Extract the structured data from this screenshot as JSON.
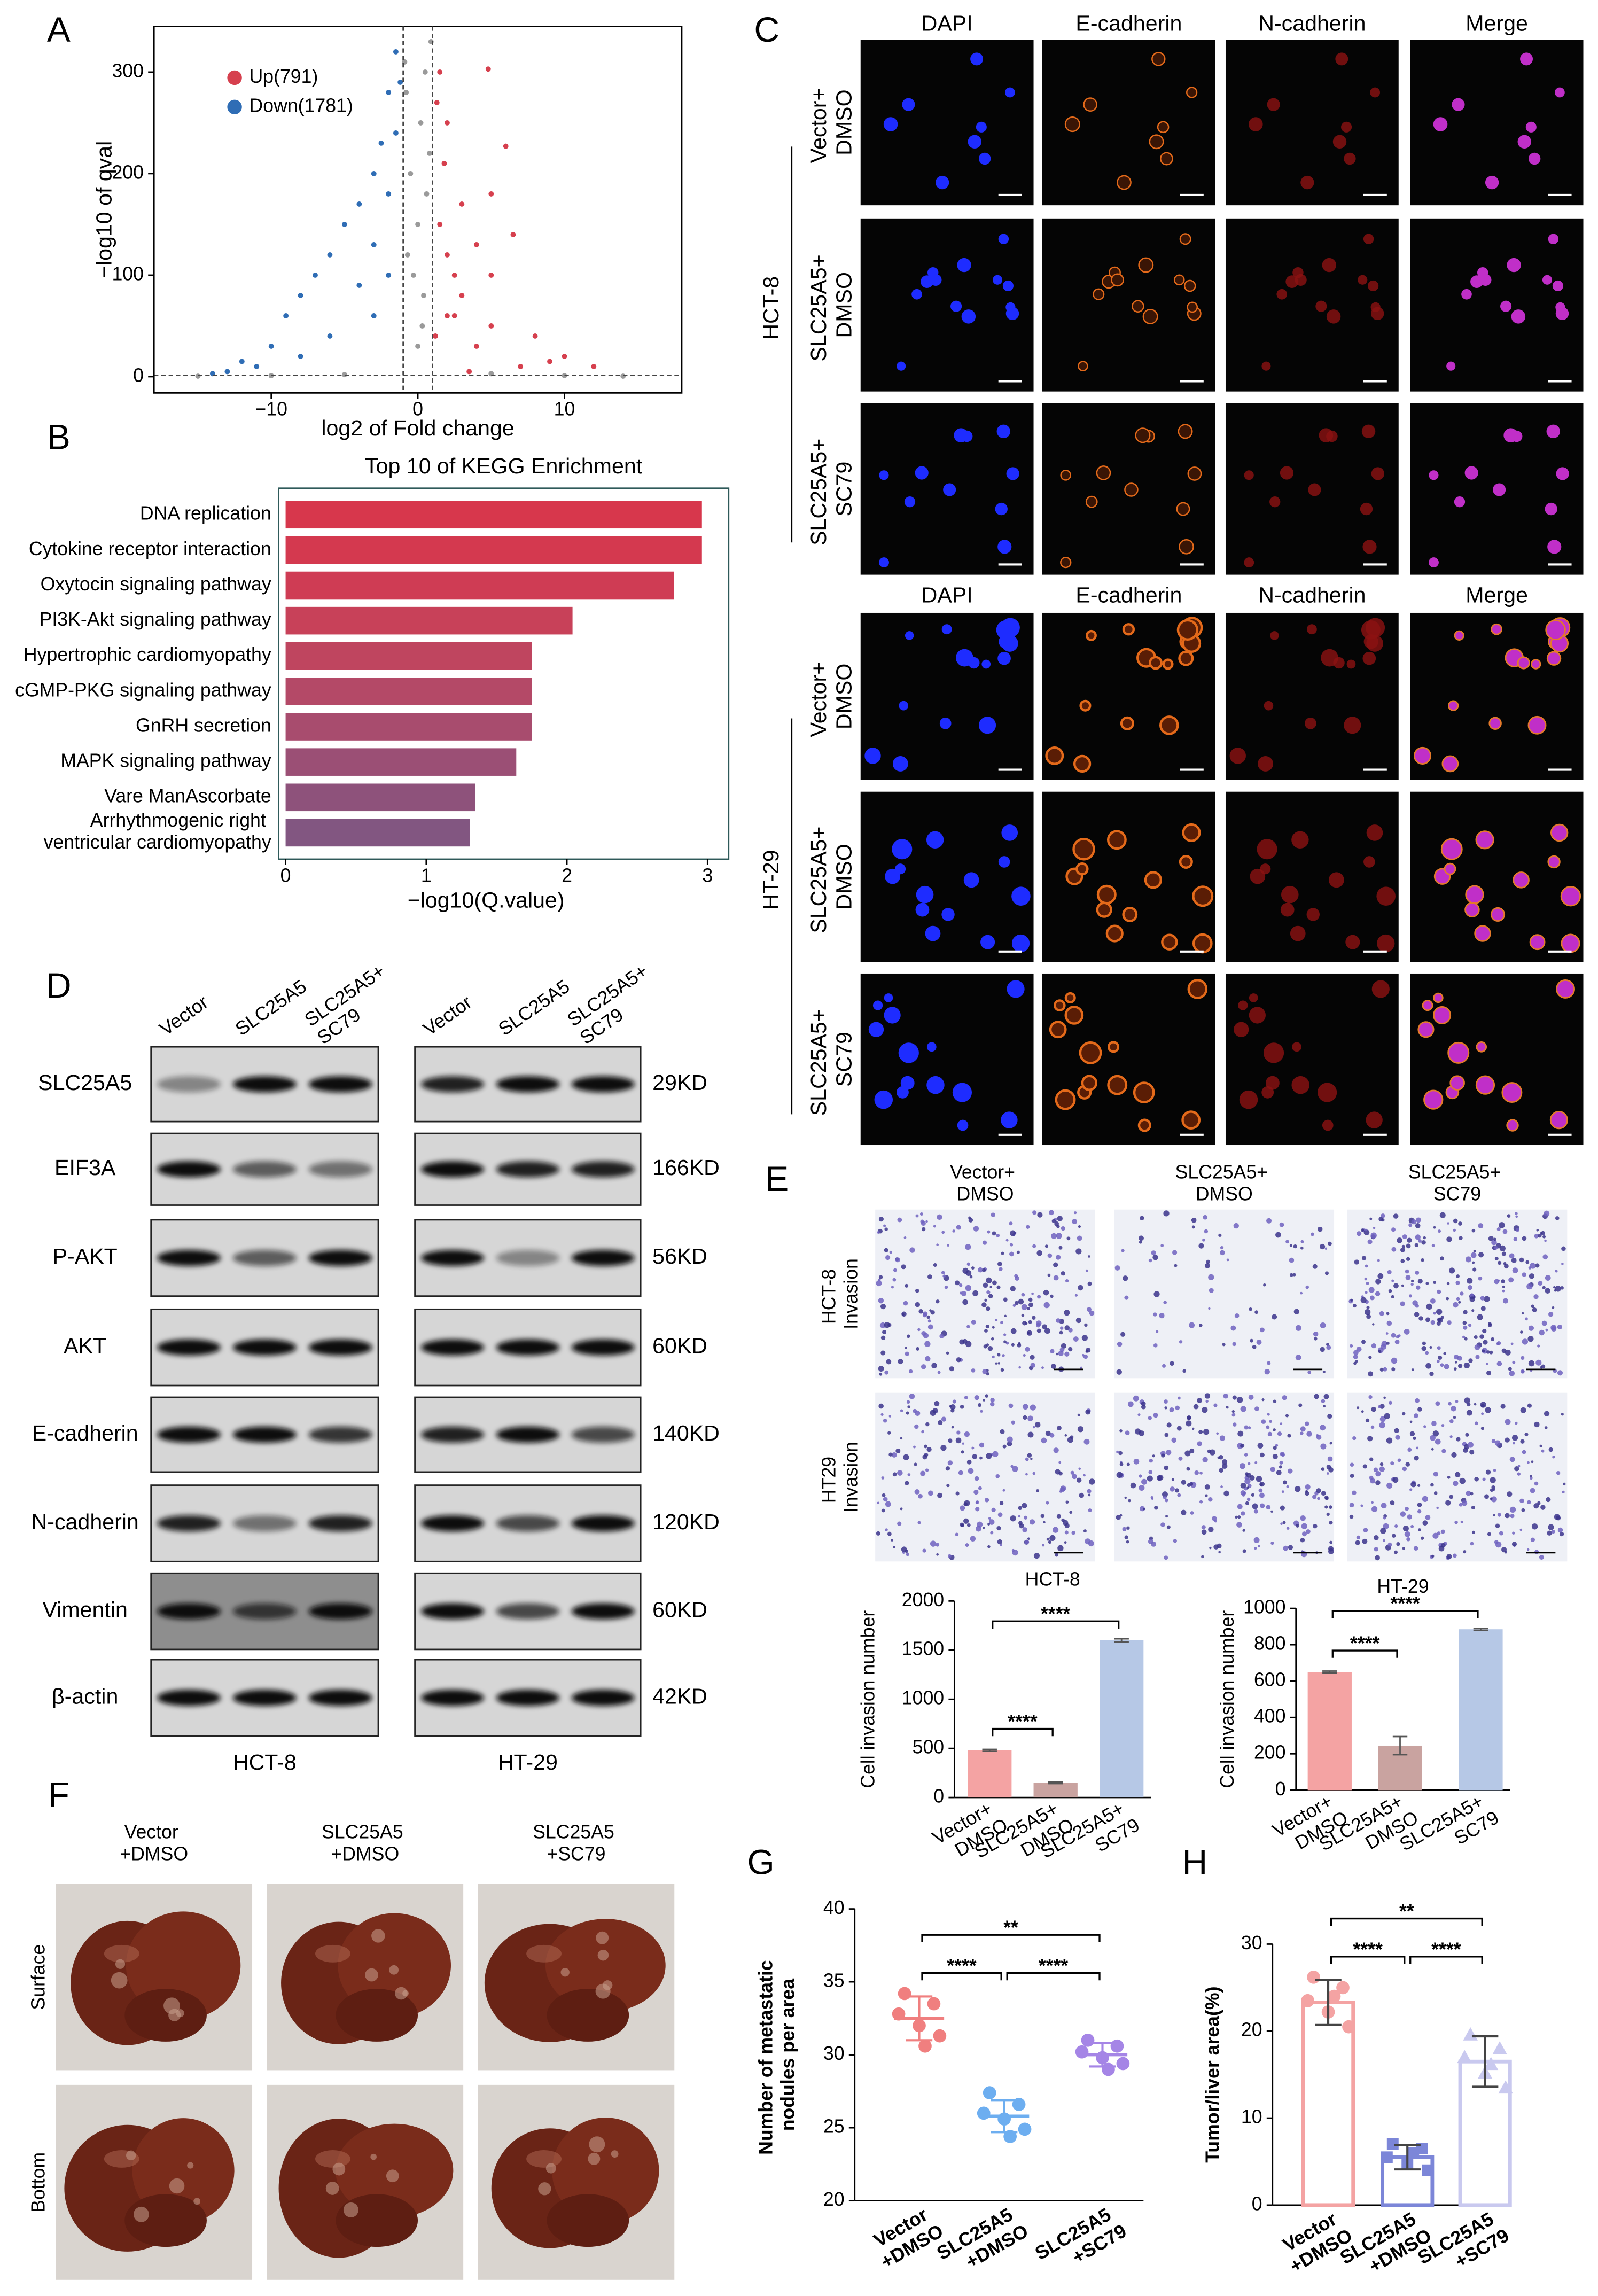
{
  "panel_labels": [
    "A",
    "B",
    "C",
    "D",
    "E",
    "F",
    "G",
    "H"
  ],
  "chart_data": [
    {
      "type": "scatter",
      "xlabel": "log2 of Fold change",
      "ylabel": "−log10 of qval",
      "xlim": [
        -18,
        18
      ],
      "ylim": [
        -16,
        345
      ],
      "xticks": [
        {
          "value": -10,
          "label": "−10"
        },
        0,
        10
      ],
      "yticks": [
        0,
        100,
        200,
        300
      ],
      "thresholds_x": [
        -1,
        1
      ],
      "threshold_y": 1.3,
      "legend": "top-left",
      "series": [
        {
          "name": "Up(791)",
          "color": "#d6404e",
          "x": [
            1.3,
            1.5,
            1.8,
            2.0,
            2.5,
            3.0,
            4.8,
            6.0,
            5.0,
            4.0,
            2.5,
            3.0,
            5.0,
            8.0,
            10.0,
            12.0,
            7.0,
            4.0,
            2.0,
            1.5,
            2.0,
            5.0,
            6.5,
            9.0,
            3.5,
            1.2
          ],
          "values": [
            270,
            300,
            210,
            250,
            100,
            170,
            303,
            227,
            180,
            130,
            60,
            80,
            50,
            40,
            20,
            10,
            10,
            30,
            120,
            150,
            60,
            100,
            140,
            15,
            5,
            40
          ]
        },
        {
          "name": "Down(1781)",
          "color": "#2f6db5",
          "x": [
            -1.2,
            -1.5,
            -2.0,
            -2.5,
            -3.0,
            -4.0,
            -5.0,
            -6.0,
            -7.0,
            -8.0,
            -9.0,
            -10.0,
            -12.0,
            -13.0,
            -11.0,
            -3.0,
            -2.0,
            -1.5,
            -4.0,
            -6.0,
            -8.0,
            -2.0,
            -3.0,
            -14.0
          ],
          "values": [
            290,
            320,
            280,
            230,
            200,
            170,
            150,
            120,
            100,
            80,
            60,
            30,
            15,
            5,
            10,
            130,
            180,
            240,
            90,
            40,
            20,
            100,
            60,
            3
          ]
        },
        {
          "color": "#9a9a9a",
          "x": [
            -0.8,
            0.5,
            0.2,
            -0.5,
            0.8,
            0,
            -0.3,
            0.4,
            0,
            0.6,
            -0.7,
            0.3,
            -5,
            5,
            -10,
            10,
            14,
            -15,
            0.9,
            -0.9
          ],
          "values": [
            280,
            300,
            250,
            200,
            220,
            150,
            100,
            80,
            30,
            180,
            120,
            50,
            2,
            3,
            1,
            1,
            0.5,
            0.5,
            330,
            310
          ]
        }
      ]
    },
    {
      "type": "barh",
      "title": "Top 10 of KEGG Enrichment",
      "xlabel": "−log10(Q.value)",
      "categories": [
        "DNA replication",
        "Cytokine receptor interaction",
        "Oxytocin signaling pathway",
        "PI3K-Akt signaling pathway",
        "Hypertrophic cardiomyopathy",
        "cGMP-PKG signaling pathway",
        "GnRH secretion",
        "MAPK signaling pathway",
        "Vare ManAscorbate",
        "Arrhythmogenic right\nventricular cardiomyopathy"
      ],
      "values": [
        2.96,
        2.96,
        2.76,
        2.04,
        1.75,
        1.75,
        1.75,
        1.64,
        1.35,
        1.31
      ],
      "colors": [
        "#d7374c",
        "#d4394f",
        "#cf3c54",
        "#c84159",
        "#bf455f",
        "#b44967",
        "#a84c6e",
        "#9b4f75",
        "#8e527b",
        "#825681"
      ],
      "highlight_index": 3,
      "highlight_color": "#e0202a",
      "xlim": [
        -0.05,
        3.15
      ],
      "xticks": [
        0,
        1,
        2,
        3
      ]
    },
    {
      "type": "bar",
      "title": "HCT-8",
      "ylabel": "Cell invasion number",
      "categories": [
        "Vector+\nDMSO",
        "SLC25A5+\nDMSO",
        "SLC25A5+\nSC79"
      ],
      "values": [
        480,
        150,
        1600
      ],
      "errors": [
        10,
        8,
        15
      ],
      "colors": [
        "#f4a3a3",
        "#c9a3a0",
        "#b6c8e6"
      ],
      "ylim": [
        0,
        2000
      ],
      "yticks": [
        0,
        500,
        1000,
        1500,
        2000
      ],
      "comparisons": [
        {
          "from": 0,
          "to": 1,
          "label": "****"
        },
        {
          "from": 0,
          "to": 2,
          "label": "****"
        }
      ]
    },
    {
      "type": "bar",
      "title": "HT-29",
      "ylabel": "Cell invasion number",
      "categories": [
        "Vector+\nDMSO",
        "SLC25A5+\nDMSO",
        "SLC25A5+\nSC79"
      ],
      "values": [
        650,
        245,
        885
      ],
      "errors": [
        5,
        50,
        5
      ],
      "colors": [
        "#f4a3a3",
        "#c9a3a0",
        "#b6c8e6"
      ],
      "ylim": [
        0,
        1000
      ],
      "yticks": [
        0,
        200,
        400,
        600,
        800,
        1000
      ],
      "comparisons": [
        {
          "from": 0,
          "to": 1,
          "label": "****"
        },
        {
          "from": 0,
          "to": 2,
          "label": "****"
        }
      ]
    },
    {
      "type": "dot",
      "ylabel": "Number of metastatic\nnodules per area",
      "categories": [
        "Vector\n+DMSO",
        "SLC25A5\n+DMSO",
        "SLC25A5\n+SC79"
      ],
      "groups": [
        {
          "color": "#f07f7f",
          "values": [
            34.2,
            33.5,
            32.8,
            32.0,
            31.3,
            30.6
          ],
          "mean": 32.5,
          "sd": 1.5
        },
        {
          "color": "#6daef0",
          "values": [
            27.4,
            26.6,
            26.0,
            25.6,
            24.9,
            24.4
          ],
          "mean": 25.8,
          "sd": 1.1
        },
        {
          "color": "#a585e6",
          "values": [
            31.0,
            30.6,
            30.2,
            29.8,
            29.4,
            29.0
          ],
          "mean": 30.0,
          "sd": 0.8
        }
      ],
      "ylim": [
        20,
        40
      ],
      "yticks": [
        20,
        25,
        30,
        35,
        40
      ],
      "comparisons": [
        {
          "from": 0,
          "to": 2,
          "label": "**"
        },
        {
          "from": 0,
          "to": 1,
          "label": "****"
        },
        {
          "from": 1,
          "to": 2,
          "label": "****"
        }
      ]
    },
    {
      "type": "bar_dot",
      "ylabel": "Tumor/liver area(%)",
      "categories": [
        "Vector\n+DMSO",
        "SLC25A5\n+DMSO",
        "SLC25A5\n+SC79"
      ],
      "groups": [
        {
          "color": "#f4a3a3",
          "values": [
            26.2,
            25.0,
            23.5,
            22.2,
            20.5,
            24.0
          ],
          "mean": 23.3,
          "sd": 2.6
        },
        {
          "color": "#7c86d8",
          "values": [
            7.0,
            6.5,
            5.5,
            4.8,
            4.0,
            6.0
          ],
          "mean": 5.5,
          "sd": 1.4
        },
        {
          "color": "#c9c9ef",
          "values": [
            19.6,
            18.0,
            17.0,
            15.2,
            13.5,
            16.2
          ],
          "mean": 16.5,
          "sd": 2.9
        }
      ],
      "ylim": [
        0,
        30
      ],
      "yticks": [
        0,
        10,
        20,
        30
      ],
      "comparisons": [
        {
          "from": 0,
          "to": 2,
          "label": "**"
        },
        {
          "from": 0,
          "to": 1,
          "label": "****"
        },
        {
          "from": 1,
          "to": 2,
          "label": "****"
        }
      ]
    }
  ],
  "panel_C": {
    "groups": [
      {
        "name": "HCT-8",
        "columns": [
          "DAPI",
          "E-cadherin",
          "N-cadherin",
          "Merge"
        ],
        "rows": [
          "Vector+\nDMSO",
          "SLC25A5+\nDMSO",
          "SLC25A5+\nSC79"
        ]
      },
      {
        "name": "HT-29",
        "columns": [
          "DAPI",
          "E-cadherin",
          "N-cadherin",
          "Merge"
        ],
        "rows": [
          "Vector+\nDMSO",
          "SLC25A5+\nDMSO",
          "SLC25A5+\nSC79"
        ]
      }
    ]
  },
  "panel_D": {
    "blots": [
      {
        "cell_line": "HCT-8",
        "lanes": [
          "Vector",
          "SLC25A5",
          "SLC25A5+\nSC79"
        ]
      },
      {
        "cell_line": "HT-29",
        "lanes": [
          "Vector",
          "SLC25A5",
          "SLC25A5+\nSC79"
        ]
      }
    ],
    "proteins": [
      "SLC25A5",
      "EIF3A",
      "P-AKT",
      "AKT",
      "E-cadherin",
      "N-cadherin",
      "Vimentin",
      "β-actin"
    ],
    "sizes": [
      "29KD",
      "166KD",
      "56KD",
      "60KD",
      "140KD",
      "120KD",
      "60KD",
      "42KD"
    ]
  },
  "panel_E": {
    "columns": [
      "Vector+\nDMSO",
      "SLC25A5+\nDMSO",
      "SLC25A5+\nSC79"
    ],
    "rows": [
      "HCT-8\nInvasion",
      "HT29\nInvasion"
    ]
  },
  "panel_F": {
    "columns": [
      "Vector\n+DMSO",
      "SLC25A5\n+DMSO",
      "SLC25A5\n+SC79"
    ],
    "rows": [
      "Surface",
      "Bottom"
    ]
  }
}
